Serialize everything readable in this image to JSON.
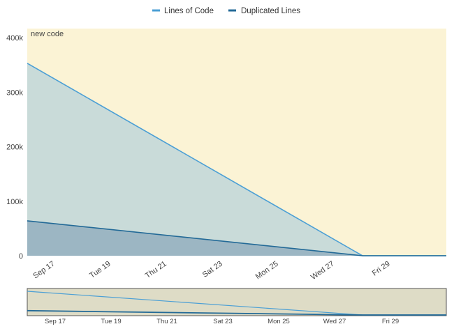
{
  "legend": {
    "lines_of_code": "Lines of Code",
    "duplicated_lines": "Duplicated Lines"
  },
  "new_code_label": "new code",
  "colors": {
    "lines_of_code": "#4b9fd5",
    "duplicated_lines": "#236a97",
    "new_code_background": "#fbf3d5",
    "lines_area_fill": "#c9dbd9",
    "duplicated_area_fill": "#9cb6c3",
    "mini_background": "#dedcc6"
  },
  "chart_data": {
    "type": "area",
    "x": [
      "Sep 16",
      "Oct 1"
    ],
    "x_ticks": [
      "Sep 17",
      "Tue 19",
      "Thu 21",
      "Sat 23",
      "Mon 25",
      "Wed 27",
      "Fri 29"
    ],
    "y_ticks": [
      "0",
      "100k",
      "200k",
      "300k",
      "400k"
    ],
    "ylim": [
      0,
      400000
    ],
    "new_code_period": "highlighted",
    "series": [
      {
        "name": "Lines of Code",
        "points": [
          {
            "x": "Sep 16",
            "y": 353000
          },
          {
            "x": "Sep 28",
            "y": 0
          },
          {
            "x": "Oct 1",
            "y": 0
          }
        ]
      },
      {
        "name": "Duplicated Lines",
        "points": [
          {
            "x": "Sep 16",
            "y": 64000
          },
          {
            "x": "Sep 28",
            "y": 0
          },
          {
            "x": "Oct 1",
            "y": 0
          }
        ]
      }
    ]
  }
}
